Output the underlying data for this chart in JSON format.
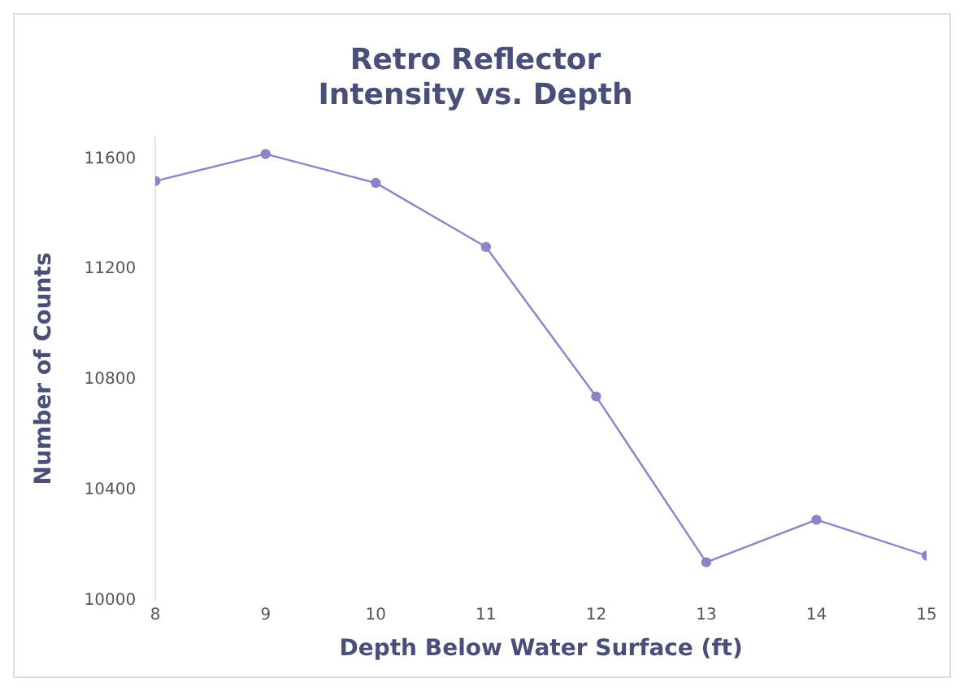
{
  "chart_data": {
    "type": "line",
    "title": "Retro Reflector\nIntensity vs. Depth",
    "xlabel": "Depth Below Water Surface (ft)",
    "ylabel": "Number of Counts",
    "x": [
      8,
      9,
      10,
      11,
      12,
      13,
      14,
      15
    ],
    "series": [
      {
        "color": "#8a84c8",
        "values": [
          11520,
          11618,
          11513,
          11281,
          10739,
          10138,
          10292,
          10162
        ]
      }
    ],
    "xlim": [
      8,
      15
    ],
    "xticks": [
      8,
      9,
      10,
      11,
      12,
      13,
      14,
      15
    ],
    "ylim": [
      10000,
      11680
    ],
    "yticks": [
      10000,
      10400,
      10800,
      11200,
      11600
    ],
    "grid": false,
    "legend": false,
    "marker": "circle",
    "line_style": "solid"
  }
}
